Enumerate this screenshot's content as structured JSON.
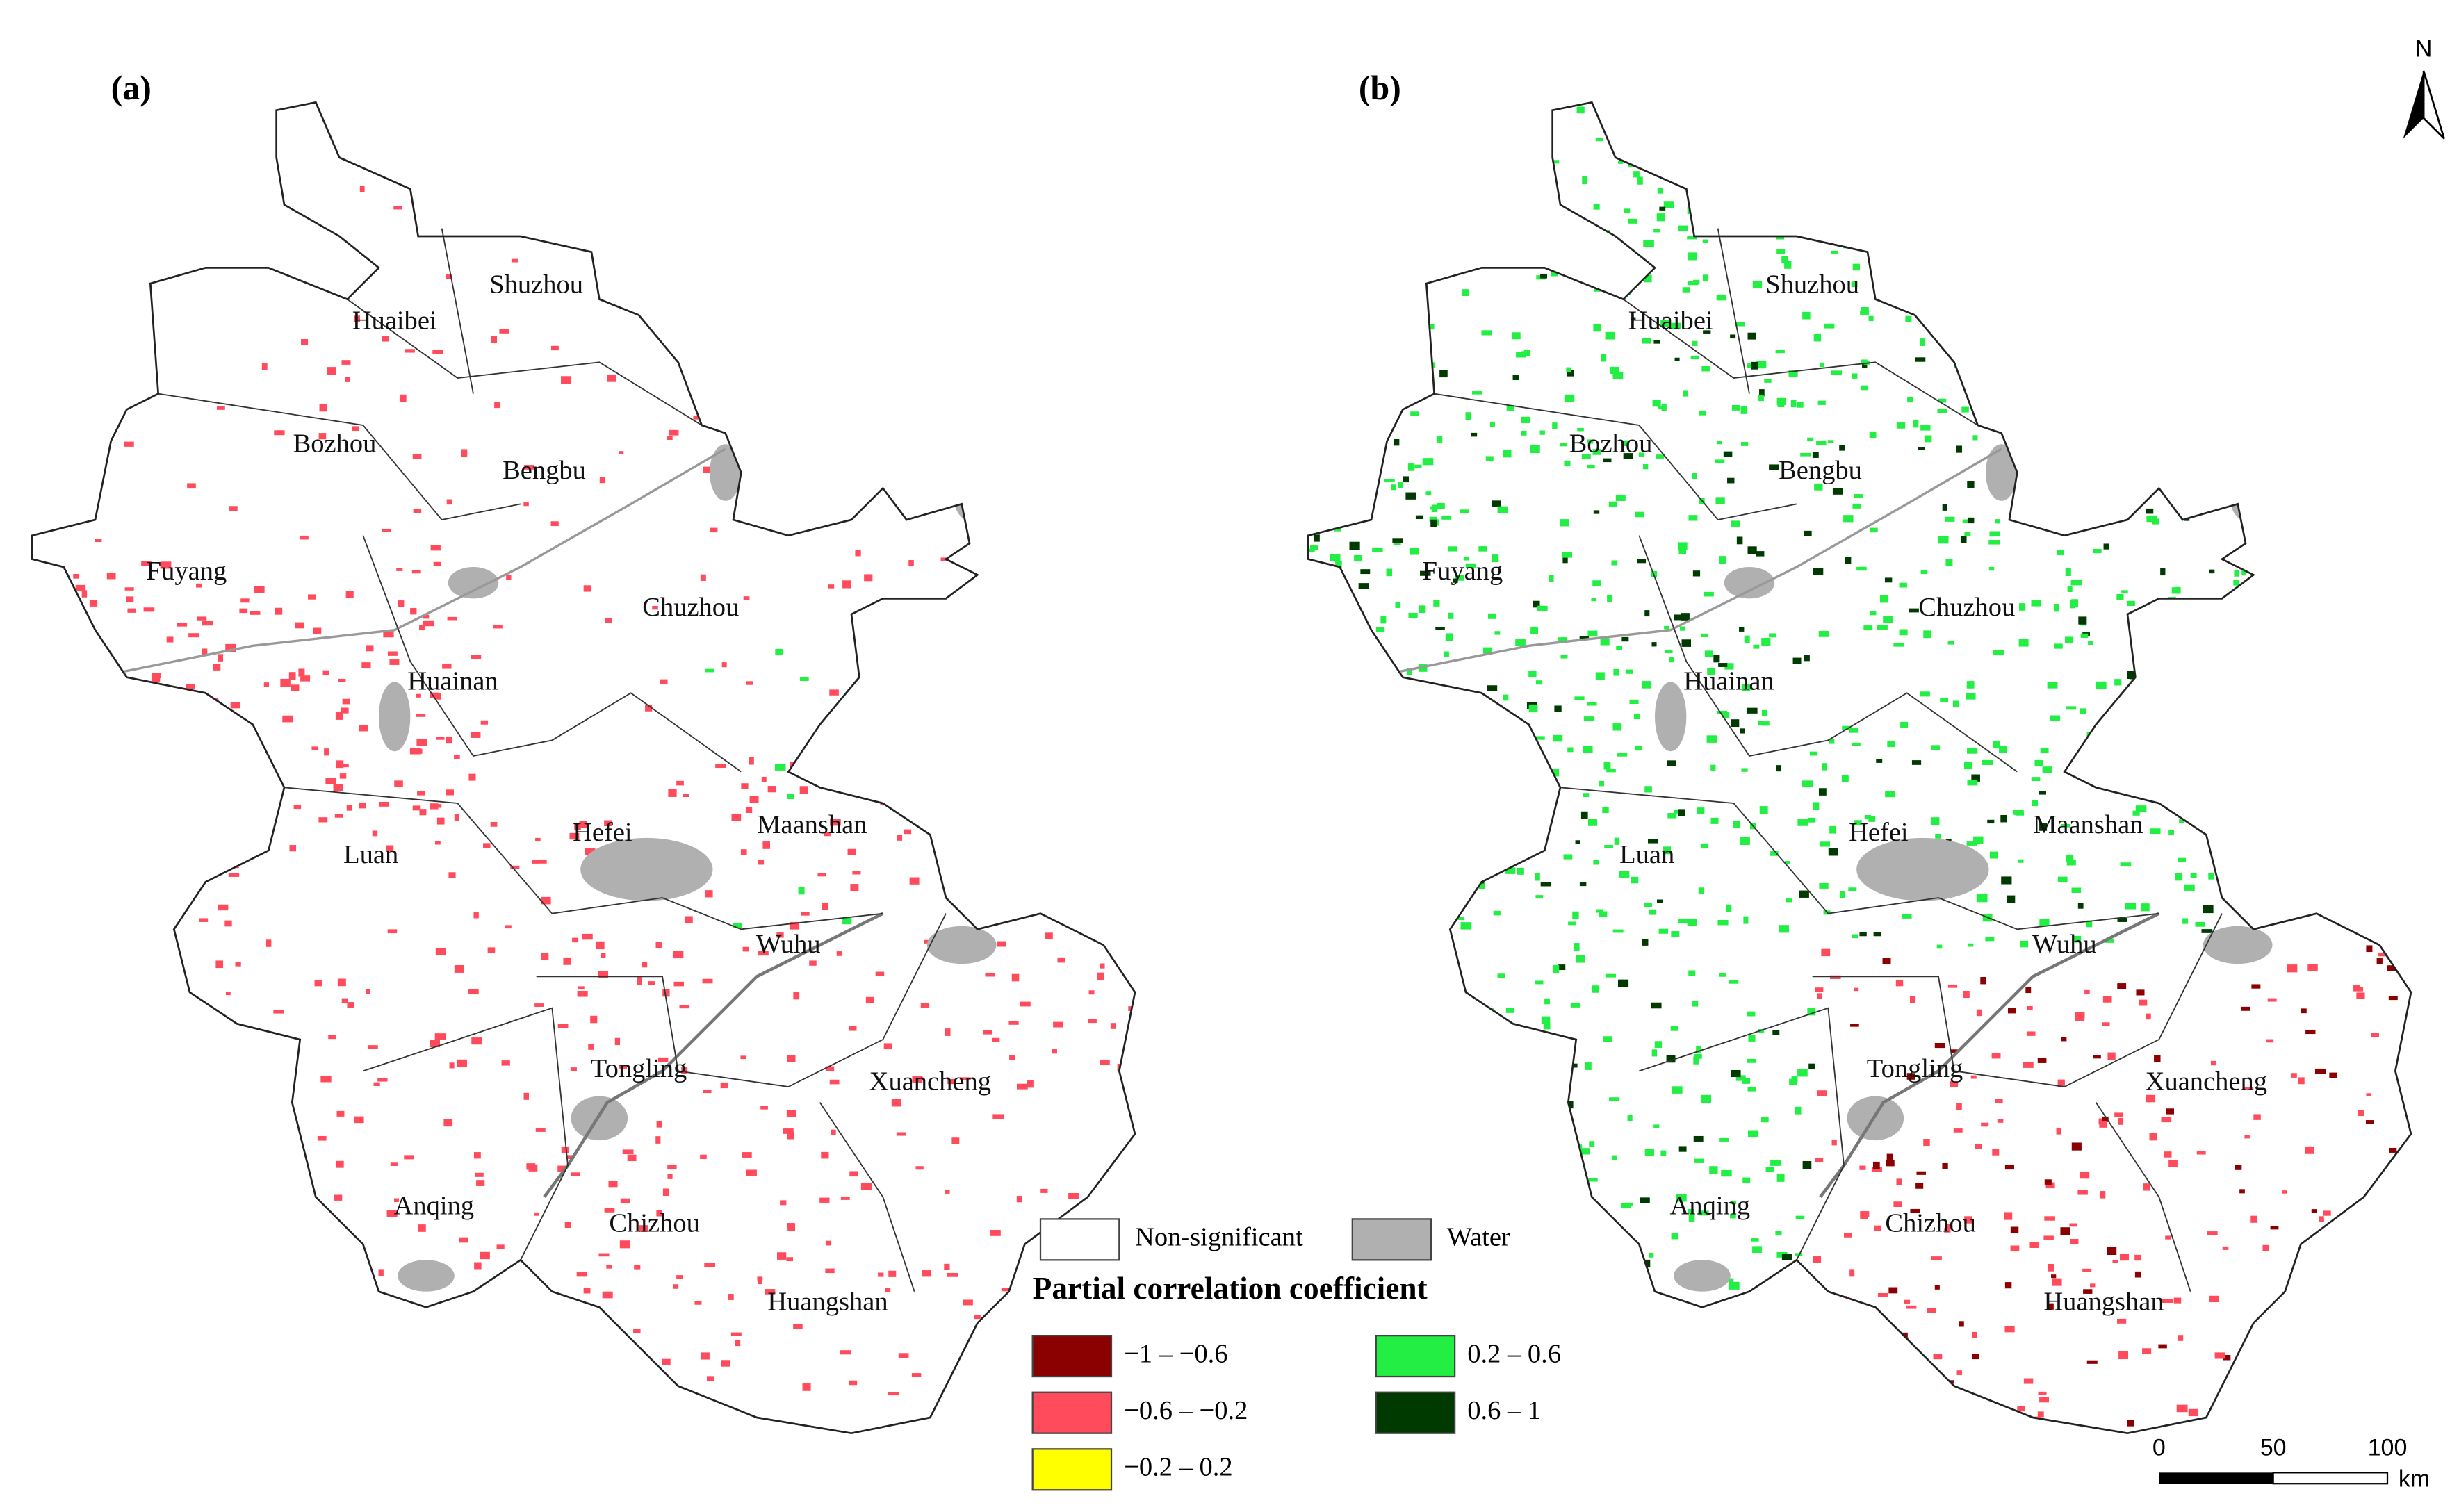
{
  "panels": [
    {
      "label": "(a)",
      "cities": [
        "Shuzhou",
        "Huaibei",
        "Bozhou",
        "Bengbu",
        "Fuyang",
        "Chuzhou",
        "Huainan",
        "Luan",
        "Hefei",
        "Maanshan",
        "Wuhu",
        "Tongling",
        "Xuancheng",
        "Anqing",
        "Chizhou",
        "Huangshan"
      ]
    },
    {
      "label": "(b)",
      "cities": [
        "Shuzhou",
        "Huaibei",
        "Bozhou",
        "Bengbu",
        "Fuyang",
        "Chuzhou",
        "Huainan",
        "Luan",
        "Hefei",
        "Maanshan",
        "Wuhu",
        "Tongling",
        "Xuancheng",
        "Anqing",
        "Chizhou",
        "Huangshan"
      ]
    }
  ],
  "north": "N",
  "legend": {
    "non_significant": "Non-significant",
    "water": "Water",
    "title": "Partial correlation coefficient",
    "classes": [
      {
        "label": "−1 – −0.6",
        "color": "#8b0000"
      },
      {
        "label": "−0.6 – −0.2",
        "color": "#ff4b5c"
      },
      {
        "label": "−0.2 – 0.2",
        "color": "#ffff00"
      },
      {
        "label": "0.2 – 0.6",
        "color": "#22ee44"
      },
      {
        "label": "0.6 – 1",
        "color": "#003a00"
      }
    ]
  },
  "scale_bar": {
    "ticks": [
      0,
      50,
      100
    ],
    "unit": "km"
  }
}
